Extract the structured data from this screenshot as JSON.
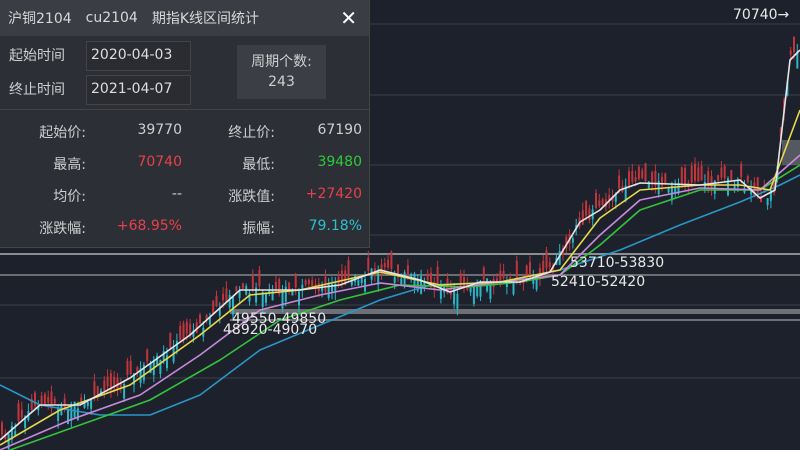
{
  "chart": {
    "annotations": {
      "high_marker": "70740→",
      "zone1": "53710-53830",
      "zone2": "52410-52420",
      "zone3": "49550-49850",
      "zone4": "48920-49070"
    },
    "colors": {
      "up": "#c0363c",
      "down": "#2bb6c8",
      "ma_white": "#e6e6e6",
      "ma_yellow": "#e8d84a",
      "ma_pink": "#c98ad8",
      "ma_green": "#35c23c",
      "ma_blue": "#2a96c8"
    }
  },
  "dialog": {
    "title_parts": [
      "沪铜2104",
      "cu2104",
      "期指K线区间统计"
    ],
    "close_icon": "close-icon",
    "start_label": "起始时间",
    "start_value": "2020-04-03",
    "end_label": "终止时间",
    "end_value": "2021-04-07",
    "period_label": "周期个数:",
    "period_value": "243",
    "stats": [
      {
        "k": "起始价:",
        "v": "39770",
        "color": "#cfcfcf"
      },
      {
        "k": "终止价:",
        "v": "67190",
        "color": "#cfcfcf"
      },
      {
        "k": "最高:",
        "v": "70740",
        "color": "#e8404a"
      },
      {
        "k": "最低:",
        "v": "39480",
        "color": "#2fc93a"
      },
      {
        "k": "均价:",
        "v": "--",
        "color": "#cfcfcf"
      },
      {
        "k": "涨跌值:",
        "v": "+27420",
        "color": "#e8404a"
      },
      {
        "k": "涨跌幅:",
        "v": "+68.95%",
        "color": "#e8404a"
      },
      {
        "k": "振幅:",
        "v": "79.18%",
        "color": "#2ec0d0"
      }
    ]
  }
}
